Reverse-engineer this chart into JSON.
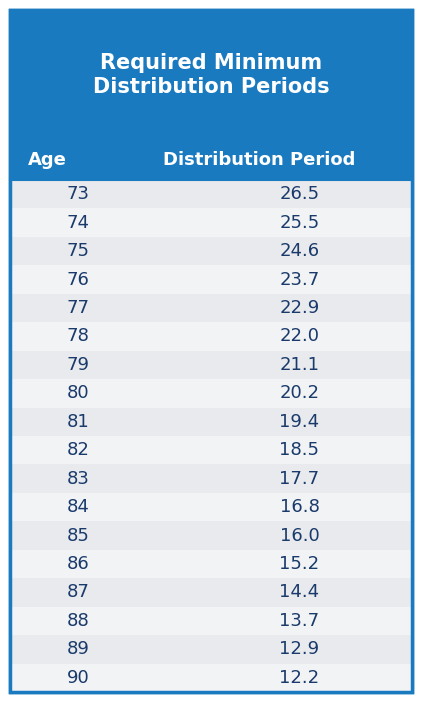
{
  "title": "Required Minimum\nDistribution Periods",
  "col1_header": "Age",
  "col2_header": "Distribution Period",
  "ages": [
    73,
    74,
    75,
    76,
    77,
    78,
    79,
    80,
    81,
    82,
    83,
    84,
    85,
    86,
    87,
    88,
    89,
    90
  ],
  "periods": [
    26.5,
    25.5,
    24.6,
    23.7,
    22.9,
    22.0,
    21.1,
    20.2,
    19.4,
    18.5,
    17.7,
    16.8,
    16.0,
    15.2,
    14.4,
    13.7,
    12.9,
    12.2
  ],
  "header_bg_color": "#1a7abf",
  "header_text_color": "#ffffff",
  "row_color_odd": "#e8eaed",
  "row_color_even": "#f2f3f5",
  "data_text_color": "#1a3a6b",
  "border_color": "#1a7abf",
  "title_fontsize": 15,
  "header_fontsize": 13,
  "data_fontsize": 13,
  "fig_bg": "#ffffff"
}
